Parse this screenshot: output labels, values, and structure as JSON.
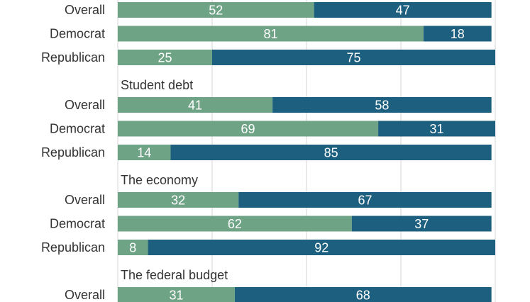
{
  "chart_data": {
    "type": "bar",
    "orientation": "horizontal",
    "stacked": true,
    "grid": true,
    "xlim": [
      0,
      100
    ],
    "colors": {
      "first": "#6fa386",
      "second": "#1c5f7e",
      "grid": "#d4d4d4"
    },
    "groups": [
      {
        "title": "",
        "rows": [
          {
            "label": "Overall",
            "values": [
              52,
              47
            ]
          },
          {
            "label": "Democrat",
            "values": [
              81,
              18
            ]
          },
          {
            "label": "Republican",
            "values": [
              25,
              75
            ]
          }
        ]
      },
      {
        "title": "Student debt",
        "rows": [
          {
            "label": "Overall",
            "values": [
              41,
              58
            ]
          },
          {
            "label": "Democrat",
            "values": [
              69,
              31
            ]
          },
          {
            "label": "Republican",
            "values": [
              14,
              85
            ]
          }
        ]
      },
      {
        "title": "The economy",
        "rows": [
          {
            "label": "Overall",
            "values": [
              32,
              67
            ]
          },
          {
            "label": "Democrat",
            "values": [
              62,
              37
            ]
          },
          {
            "label": "Republican",
            "values": [
              8,
              92
            ]
          }
        ]
      },
      {
        "title": "The federal budget",
        "rows": [
          {
            "label": "Overall",
            "values": [
              31,
              68
            ]
          }
        ]
      }
    ]
  }
}
